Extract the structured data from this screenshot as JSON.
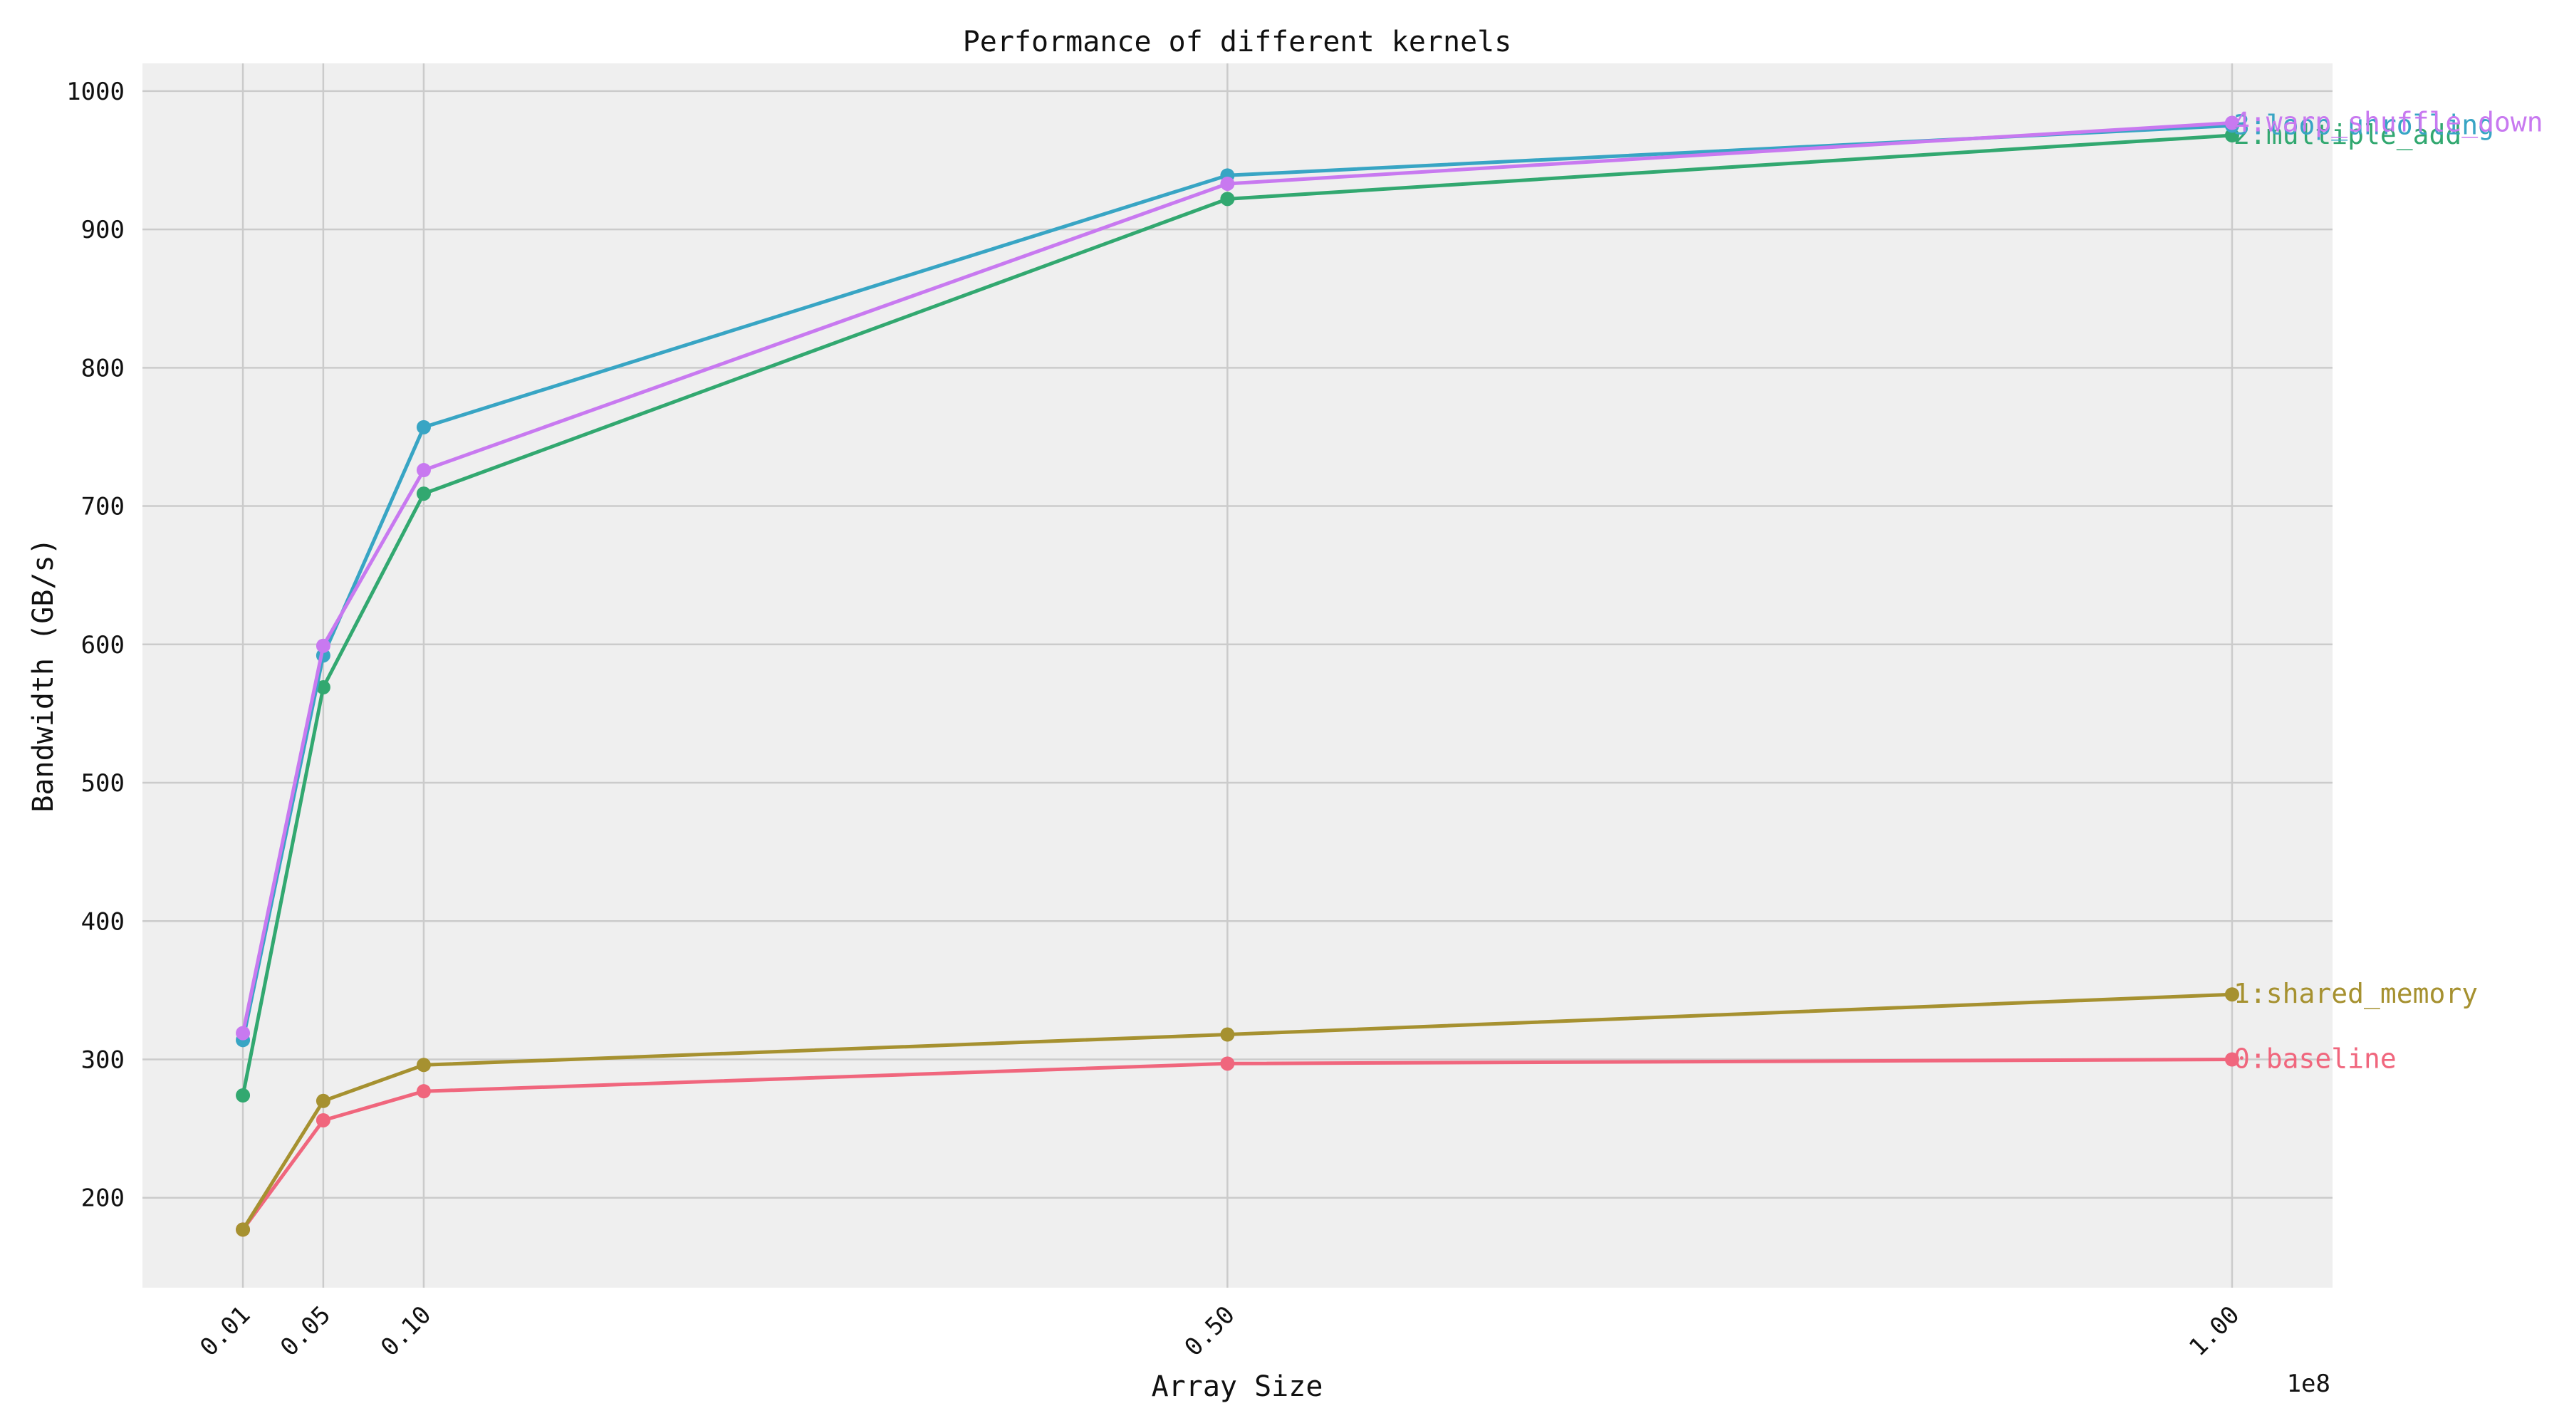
{
  "chart_data": {
    "type": "line",
    "title": "Performance of different kernels",
    "xlabel": "Array Size",
    "ylabel": "Bandwidth (GB/s)",
    "x_offset_label": "1e8",
    "x": [
      1000000,
      5000000,
      10000000,
      50000000,
      100000000
    ],
    "x_tick_labels": [
      "0.01",
      "0.05",
      "0.10",
      "0.50",
      "1.00"
    ],
    "y_ticks": [
      200,
      300,
      400,
      500,
      600,
      700,
      800,
      900,
      1000
    ],
    "xlim": [
      -4000000,
      105000000
    ],
    "ylim": [
      135,
      1020
    ],
    "grid": true,
    "series": [
      {
        "name": "0:baseline",
        "color": "#f0667d",
        "values": [
          177,
          256,
          277,
          297,
          300
        ]
      },
      {
        "name": "1:shared_memory",
        "color": "#a69130",
        "values": [
          177,
          270,
          296,
          318,
          347
        ]
      },
      {
        "name": "2:multiple_add",
        "color": "#32a870",
        "values": [
          274,
          569,
          709,
          922,
          968
        ]
      },
      {
        "name": "3:loop_unrolling",
        "color": "#38a5c4",
        "values": [
          314,
          592,
          757,
          939,
          975
        ]
      },
      {
        "name": "4:warp_shuffle_down",
        "color": "#c879f0",
        "values": [
          319,
          599,
          726,
          933,
          977
        ]
      }
    ]
  }
}
